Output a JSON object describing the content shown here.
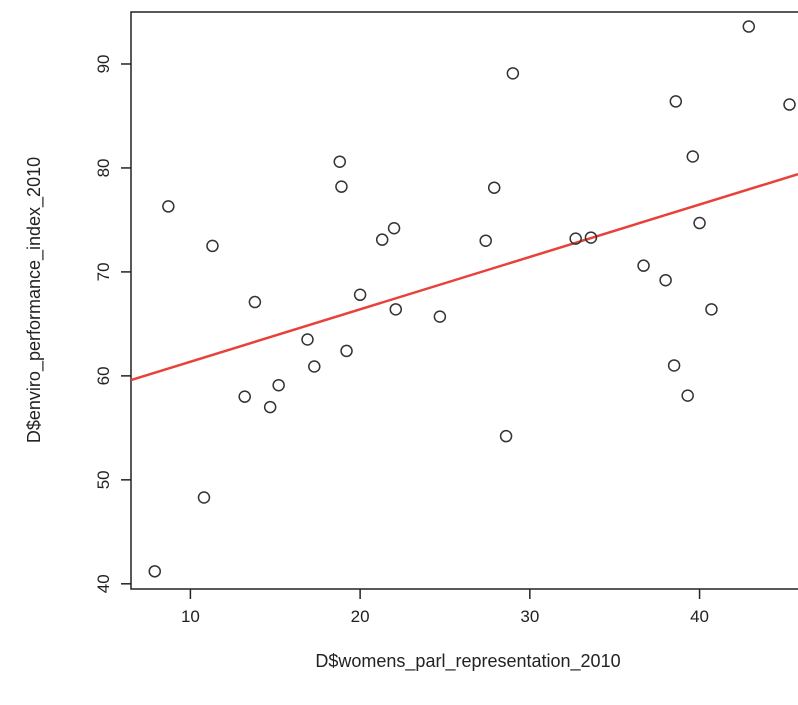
{
  "chart_data": {
    "type": "scatter",
    "title": "",
    "xlabel": "D$womens_parl_representation_2010",
    "ylabel": "D$enviro_performance_index_2010",
    "xlim": [
      6.5,
      45.8
    ],
    "ylim": [
      39.5,
      95.0
    ],
    "x_ticks": [
      10,
      20,
      30,
      40
    ],
    "y_ticks": [
      40,
      50,
      60,
      70,
      80,
      90
    ],
    "grid": false,
    "legend": "none",
    "point_style": "open circle",
    "point_color": "#333333",
    "fit_line": {
      "type": "linear",
      "color": "#e8413a",
      "x": [
        6.5,
        45.8
      ],
      "y": [
        59.6,
        79.4
      ]
    },
    "points": [
      {
        "x": 7.9,
        "y": 41.2
      },
      {
        "x": 8.7,
        "y": 76.3
      },
      {
        "x": 10.8,
        "y": 48.3
      },
      {
        "x": 11.3,
        "y": 72.5
      },
      {
        "x": 13.2,
        "y": 58.0
      },
      {
        "x": 13.8,
        "y": 67.1
      },
      {
        "x": 14.7,
        "y": 57.0
      },
      {
        "x": 15.2,
        "y": 59.1
      },
      {
        "x": 16.9,
        "y": 63.5
      },
      {
        "x": 17.3,
        "y": 60.9
      },
      {
        "x": 18.8,
        "y": 80.6
      },
      {
        "x": 18.9,
        "y": 78.2
      },
      {
        "x": 19.2,
        "y": 62.4
      },
      {
        "x": 20.0,
        "y": 67.8
      },
      {
        "x": 21.3,
        "y": 73.1
      },
      {
        "x": 22.0,
        "y": 74.2
      },
      {
        "x": 22.1,
        "y": 66.4
      },
      {
        "x": 24.7,
        "y": 65.7
      },
      {
        "x": 27.4,
        "y": 73.0
      },
      {
        "x": 27.9,
        "y": 78.1
      },
      {
        "x": 28.6,
        "y": 54.2
      },
      {
        "x": 29.0,
        "y": 89.1
      },
      {
        "x": 32.7,
        "y": 73.2
      },
      {
        "x": 33.6,
        "y": 73.3
      },
      {
        "x": 36.7,
        "y": 70.6
      },
      {
        "x": 38.0,
        "y": 69.2
      },
      {
        "x": 38.5,
        "y": 61.0
      },
      {
        "x": 38.6,
        "y": 86.4
      },
      {
        "x": 39.3,
        "y": 58.1
      },
      {
        "x": 39.6,
        "y": 81.1
      },
      {
        "x": 40.0,
        "y": 74.7
      },
      {
        "x": 40.7,
        "y": 66.4
      },
      {
        "x": 42.9,
        "y": 93.6
      },
      {
        "x": 45.3,
        "y": 86.1
      }
    ]
  }
}
